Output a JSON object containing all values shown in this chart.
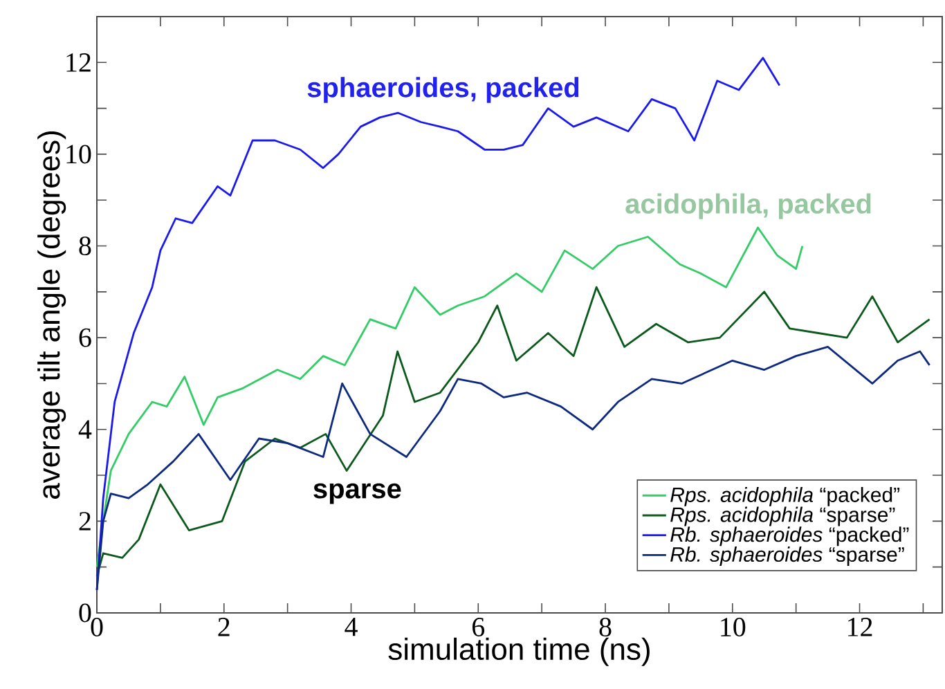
{
  "chart_data": {
    "type": "line",
    "xlabel": "simulation time (ns)",
    "ylabel": "average tilt angle (degrees)",
    "xlim": [
      0,
      13.3
    ],
    "ylim": [
      0,
      13
    ],
    "xticks": [
      0,
      {
        "value": 1,
        "label": null
      },
      2,
      {
        "value": 3,
        "label": null
      },
      4,
      {
        "value": 5,
        "label": null
      },
      6,
      {
        "value": 7,
        "label": null
      },
      8,
      {
        "value": 9,
        "label": null
      },
      10,
      {
        "value": 11,
        "label": null
      },
      12,
      {
        "value": 13,
        "label": null
      }
    ],
    "yticks": [
      0,
      {
        "value": 1,
        "label": null
      },
      2,
      {
        "value": 3,
        "label": null
      },
      4,
      {
        "value": 5,
        "label": null
      },
      6,
      {
        "value": 7,
        "label": null
      },
      8,
      {
        "value": 9,
        "label": null
      },
      10,
      {
        "value": 11,
        "label": null
      },
      12
    ],
    "grid": false,
    "legend": "bottom right",
    "marker": "none",
    "line_style": "solid",
    "series": [
      {
        "name": "*Rps. acidophila* “packed”",
        "color": "#33cc66",
        "x": [
          0,
          0.1,
          0.22,
          0.5,
          0.87,
          1.1,
          1.38,
          1.68,
          1.9,
          2.3,
          2.84,
          3.2,
          3.56,
          3.9,
          4.3,
          4.7,
          5.0,
          5.4,
          5.68,
          6.1,
          6.6,
          7.0,
          7.36,
          7.8,
          8.2,
          8.67,
          9.17,
          9.5,
          9.9,
          10.4,
          10.7,
          11.0,
          11.1
        ],
        "values": [
          1.0,
          2.0,
          3.1,
          3.9,
          4.6,
          4.5,
          5.15,
          4.1,
          4.7,
          4.9,
          5.3,
          5.1,
          5.6,
          5.4,
          6.4,
          6.2,
          7.1,
          6.5,
          6.7,
          6.9,
          7.4,
          7.0,
          7.9,
          7.5,
          8.0,
          8.2,
          7.6,
          7.4,
          7.1,
          8.4,
          7.8,
          7.5,
          8.0
        ]
      },
      {
        "name": "*Rps. acidophila* “sparse”",
        "color": "#0b5a1c",
        "x": [
          0,
          0.1,
          0.4,
          0.66,
          1.0,
          1.45,
          1.97,
          2.33,
          2.8,
          3.2,
          3.6,
          3.93,
          4.5,
          4.73,
          5.0,
          5.4,
          6.0,
          6.3,
          6.6,
          7.1,
          7.5,
          7.86,
          8.3,
          8.8,
          9.3,
          9.8,
          10.5,
          10.9,
          11.35,
          11.8,
          12.2,
          12.6,
          13.1
        ],
        "values": [
          0.8,
          1.3,
          1.2,
          1.6,
          2.8,
          1.8,
          2.0,
          3.3,
          3.8,
          3.6,
          3.9,
          3.1,
          4.3,
          5.7,
          4.6,
          4.8,
          5.9,
          6.7,
          5.5,
          6.1,
          5.6,
          7.1,
          5.8,
          6.3,
          5.9,
          6.0,
          7.0,
          6.2,
          6.1,
          6.0,
          6.9,
          5.9,
          6.4
        ]
      },
      {
        "name": "*Rb. sphaeroides* “packed”",
        "color": "#1a1aee",
        "x": [
          0,
          0.1,
          0.28,
          0.58,
          0.87,
          1.0,
          1.24,
          1.5,
          1.9,
          2.1,
          2.45,
          2.8,
          3.2,
          3.56,
          3.8,
          4.15,
          4.45,
          4.74,
          5.1,
          5.4,
          5.68,
          6.1,
          6.4,
          6.7,
          7.1,
          7.5,
          7.86,
          8.36,
          8.73,
          9.1,
          9.4,
          9.76,
          10.1,
          10.48,
          10.74
        ],
        "values": [
          0.5,
          2.5,
          4.6,
          6.1,
          7.1,
          7.9,
          8.6,
          8.5,
          9.3,
          9.1,
          10.3,
          10.3,
          10.1,
          9.7,
          10.0,
          10.6,
          10.8,
          10.9,
          10.7,
          10.6,
          10.5,
          10.1,
          10.1,
          10.2,
          11.0,
          10.6,
          10.8,
          10.5,
          11.2,
          11.0,
          10.3,
          11.6,
          11.4,
          12.1,
          11.5
        ]
      },
      {
        "name": "*Rb. sphaeroides* “sparse”",
        "color": "#0d2a80",
        "x": [
          0,
          0.1,
          0.22,
          0.5,
          0.8,
          1.2,
          1.6,
          2.1,
          2.55,
          3.0,
          3.56,
          3.86,
          4.3,
          4.87,
          5.4,
          5.68,
          6.05,
          6.4,
          6.77,
          7.3,
          7.8,
          8.2,
          8.73,
          9.2,
          10.0,
          10.5,
          11.0,
          11.5,
          12.2,
          12.6,
          12.95,
          13.1
        ],
        "values": [
          0.5,
          2.0,
          2.6,
          2.5,
          2.8,
          3.3,
          3.9,
          2.9,
          3.8,
          3.7,
          3.4,
          5.0,
          3.9,
          3.4,
          4.4,
          5.1,
          5.0,
          4.7,
          4.8,
          4.5,
          4.0,
          4.6,
          5.1,
          5.0,
          5.5,
          5.3,
          5.6,
          5.8,
          5.0,
          5.5,
          5.7,
          5.4
        ]
      }
    ],
    "annotations": [
      "sphaeroides, packed",
      "acidophila, packed",
      "sparse"
    ]
  }
}
